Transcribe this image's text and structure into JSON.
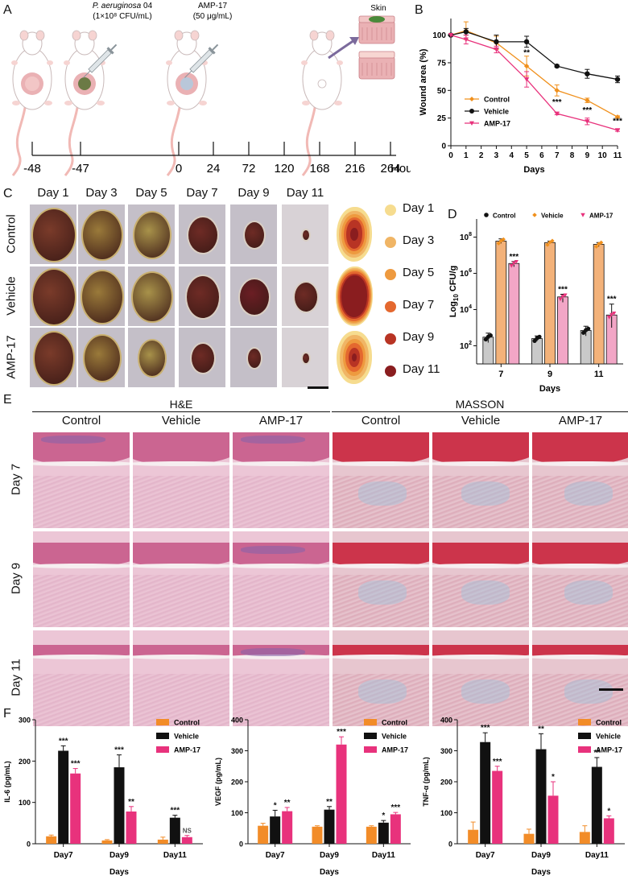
{
  "panels": {
    "A": "A",
    "B": "B",
    "C": "C",
    "D": "D",
    "E": "E",
    "F": "F"
  },
  "schematic": {
    "pathogen_name": "P. aeruginosa",
    "pathogen_strain": " 04",
    "pathogen_dose": "(1×10⁸ CFU/mL)",
    "drug_name": "AMP-17",
    "drug_dose": "(50 μg/mL)",
    "skin_label": "Skin",
    "timeline_ticks": [
      "-48",
      "-47",
      "0",
      "24",
      "72",
      "120",
      "168",
      "216",
      "264"
    ],
    "timeline_unit": "Hours"
  },
  "wound_photos": {
    "days": [
      "Day 1",
      "Day 3",
      "Day 5",
      "Day 7",
      "Day 9",
      "Day 11"
    ],
    "groups": [
      "Control",
      "Vehicle",
      "AMP-17"
    ],
    "trace_legend": [
      "Day 1",
      "Day 3",
      "Day 5",
      "Day 7",
      "Day 9",
      "Day 11"
    ],
    "trace_colors": [
      "#f6dc8f",
      "#f0b565",
      "#ee9a3f",
      "#e4682f",
      "#b83424",
      "#8a1d1f"
    ]
  },
  "histology": {
    "stain_he": "H&E",
    "stain_masson": "MASSON",
    "groups": [
      "Control",
      "Vehicle",
      "AMP-17",
      "Control",
      "Vehicle",
      "AMP-17"
    ],
    "days": [
      "Day 7",
      "Day 9",
      "Day 11"
    ]
  },
  "chart_data": [
    {
      "id": "B",
      "type": "line",
      "xlabel": "Days",
      "ylabel": "Wound area (%)",
      "x": [
        0,
        1,
        2,
        3,
        4,
        5,
        6,
        7,
        8,
        9,
        10,
        11
      ],
      "xlim": [
        0,
        11
      ],
      "ylim": [
        0,
        115
      ],
      "yticks": [
        0,
        25,
        50,
        75,
        100
      ],
      "legend_position": "center-left",
      "series": [
        {
          "name": "Control",
          "color": "#f0901c",
          "marker": "diamond",
          "x": [
            0,
            1,
            3,
            5,
            7,
            9,
            11
          ],
          "y": [
            100,
            104,
            93,
            72,
            50,
            41,
            26
          ],
          "err": [
            0,
            8,
            6,
            9,
            5,
            2,
            1
          ]
        },
        {
          "name": "Vehicle",
          "color": "#111111",
          "marker": "circle",
          "x": [
            0,
            1,
            3,
            5,
            7,
            9,
            11
          ],
          "y": [
            100,
            103,
            94,
            94,
            72,
            65,
            60
          ],
          "err": [
            0,
            3,
            6,
            5,
            1,
            4,
            3
          ]
        },
        {
          "name": "AMP-17",
          "color": "#e8327c",
          "marker": "triangle-down",
          "x": [
            0,
            1,
            3,
            5,
            7,
            9,
            11
          ],
          "y": [
            100,
            96,
            87,
            60,
            29,
            22,
            14
          ],
          "err": [
            0,
            4,
            3,
            7,
            1,
            3,
            1
          ]
        }
      ],
      "annotations": [
        {
          "x": 5,
          "y": 82,
          "text": "**"
        },
        {
          "x": 7,
          "y": 37,
          "text": "***"
        },
        {
          "x": 9,
          "y": 30,
          "text": "***"
        },
        {
          "x": 11,
          "y": 20,
          "text": "***"
        }
      ]
    },
    {
      "id": "D",
      "type": "bar",
      "xlabel": "Days",
      "ylabel_main": "Log",
      "ylabel_sub": "10",
      "ylabel_tail": " CFU/g",
      "yscale": "log",
      "ylim": [
        10,
        1000000000.0
      ],
      "ytick_values": [
        100,
        10000,
        1000000,
        100000000
      ],
      "ytick_bases": [
        "10",
        "10",
        "10",
        "10"
      ],
      "ytick_exps": [
        "2",
        "4",
        "6",
        "8"
      ],
      "categories": [
        "7",
        "9",
        "11"
      ],
      "legend_position": "top",
      "series": [
        {
          "name": "Control",
          "color": "#c9c9c9",
          "marker_color": "#111111",
          "marker": "circle",
          "values": [
            300,
            250,
            700
          ],
          "err_lo": [
            150,
            70,
            350
          ],
          "err_hi": [
            200,
            100,
            500
          ]
        },
        {
          "name": "Vehicle",
          "color": "#f3b27a",
          "marker_color": "#f0901c",
          "marker": "diamond",
          "values": [
            60000000,
            50000000,
            40000000
          ],
          "err_lo": [
            15000000,
            8000000,
            10000000
          ],
          "err_hi": [
            20000000,
            10000000,
            10000000
          ]
        },
        {
          "name": "AMP-17",
          "color": "#f2a6c6",
          "marker_color": "#e8327c",
          "marker": "triangle-down",
          "values": [
            3500000,
            50000,
            5000
          ],
          "err_lo": [
            1200000,
            25000,
            4000
          ],
          "err_hi": [
            1000000,
            20000,
            15000
          ]
        }
      ],
      "annotations": [
        {
          "cat": 0,
          "series": 2,
          "text": "***"
        },
        {
          "cat": 1,
          "series": 2,
          "text": "***"
        },
        {
          "cat": 2,
          "series": 2,
          "text": "***"
        }
      ]
    },
    {
      "id": "F1",
      "type": "bar",
      "xlabel": "Days",
      "ylabel": "IL-6 (pg/mL)",
      "ylim": [
        0,
        300
      ],
      "yticks": [
        0,
        100,
        200,
        300
      ],
      "categories": [
        "Day7",
        "Day9",
        "Day11"
      ],
      "legend_position": "top-right",
      "series": [
        {
          "name": "Control",
          "color": "#f28c28",
          "values": [
            18,
            8,
            10
          ],
          "err": [
            3,
            2,
            6
          ]
        },
        {
          "name": "Vehicle",
          "color": "#111111",
          "values": [
            225,
            185,
            63
          ],
          "err": [
            12,
            30,
            6
          ]
        },
        {
          "name": "AMP-17",
          "color": "#e8327c",
          "values": [
            170,
            78,
            16
          ],
          "err": [
            12,
            12,
            4
          ]
        }
      ],
      "annotations": [
        {
          "cat": 0,
          "series": 1,
          "text": "***"
        },
        {
          "cat": 0,
          "series": 2,
          "text": "***"
        },
        {
          "cat": 1,
          "series": 1,
          "text": "***"
        },
        {
          "cat": 1,
          "series": 2,
          "text": "**"
        },
        {
          "cat": 2,
          "series": 1,
          "text": "***"
        },
        {
          "cat": 2,
          "series": 2,
          "text": "NS"
        }
      ]
    },
    {
      "id": "F2",
      "type": "bar",
      "xlabel": "Days",
      "ylabel": "VEGF (pg/mL)",
      "ylim": [
        0,
        400
      ],
      "yticks": [
        0,
        100,
        200,
        300,
        400
      ],
      "categories": [
        "Day7",
        "Day9",
        "Day11"
      ],
      "legend_position": "top-right",
      "series": [
        {
          "name": "Control",
          "color": "#f28c28",
          "values": [
            58,
            55,
            55
          ],
          "err": [
            8,
            3,
            3
          ]
        },
        {
          "name": "Vehicle",
          "color": "#111111",
          "values": [
            88,
            110,
            68
          ],
          "err": [
            20,
            10,
            7
          ]
        },
        {
          "name": "AMP-17",
          "color": "#e8327c",
          "values": [
            105,
            320,
            95
          ],
          "err": [
            12,
            25,
            6
          ]
        }
      ],
      "annotations": [
        {
          "cat": 0,
          "series": 1,
          "text": "*"
        },
        {
          "cat": 0,
          "series": 2,
          "text": "**"
        },
        {
          "cat": 1,
          "series": 1,
          "text": "**"
        },
        {
          "cat": 1,
          "series": 2,
          "text": "***"
        },
        {
          "cat": 2,
          "series": 1,
          "text": "*"
        },
        {
          "cat": 2,
          "series": 2,
          "text": "***"
        }
      ]
    },
    {
      "id": "F3",
      "type": "bar",
      "xlabel": "Days",
      "ylabel": "TNF-α (pg/mL)",
      "ylim": [
        0,
        400
      ],
      "yticks": [
        0,
        100,
        200,
        300,
        400
      ],
      "categories": [
        "Day7",
        "Day9",
        "Day11"
      ],
      "legend_position": "top-right",
      "series": [
        {
          "name": "Control",
          "color": "#f28c28",
          "values": [
            45,
            32,
            38
          ],
          "err": [
            25,
            15,
            20
          ]
        },
        {
          "name": "Vehicle",
          "color": "#111111",
          "values": [
            328,
            305,
            248
          ],
          "err": [
            30,
            50,
            30
          ]
        },
        {
          "name": "AMP-17",
          "color": "#e8327c",
          "values": [
            235,
            155,
            82
          ],
          "err": [
            15,
            45,
            8
          ]
        }
      ],
      "annotations": [
        {
          "cat": 0,
          "series": 1,
          "text": "***"
        },
        {
          "cat": 0,
          "series": 2,
          "text": "***"
        },
        {
          "cat": 1,
          "series": 1,
          "text": "**"
        },
        {
          "cat": 1,
          "series": 2,
          "text": "*"
        },
        {
          "cat": 2,
          "series": 1,
          "text": "**"
        },
        {
          "cat": 2,
          "series": 2,
          "text": "*"
        }
      ]
    }
  ]
}
